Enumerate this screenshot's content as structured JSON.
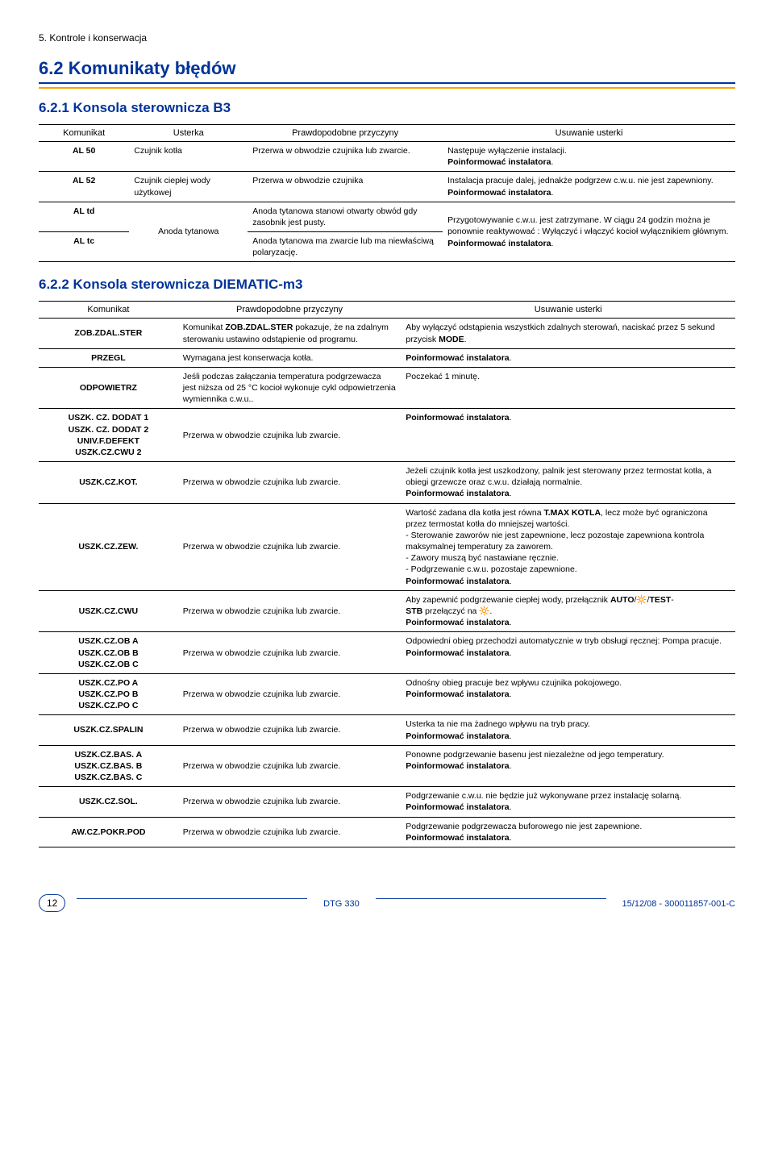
{
  "crumb": "5. Kontrole i konserwacja",
  "h2": "6.2  Komunikaty błędów",
  "section1": {
    "title": "6.2.1   Konsola sterownicza  B3",
    "headers": [
      "Komunikat",
      "Usterka",
      "Prawdopodobne przyczyny",
      "Usuwanie usterki"
    ],
    "rows": [
      {
        "c0": "AL 50",
        "c1": "Czujnik kotła",
        "c2": "Przerwa w obwodzie czujnika lub zwarcie.",
        "c3": "Następuje wyłączenie instalacji.\nPoinformować instalatora."
      },
      {
        "c0": "AL 52",
        "c1": "Czujnik ciepłej wody użytkowej",
        "c2": "Przerwa w obwodzie czujnika",
        "c3": "Instalacja pracuje dalej, jednakże podgrzew c.w.u. nie jest zapewniony.\nPoinformować instalatora."
      },
      {
        "c0": "AL td",
        "c2": "Anoda tytanowa stanowi otwarty obwód gdy zasobnik jest pusty."
      },
      {
        "c0": "AL tc",
        "c2": "Anoda tytanowa ma zwarcie lub ma niewłaściwą polaryzację."
      }
    ],
    "anoda_label": "Anoda tytanowa",
    "anoda_r3": "Przygotowywanie c.w.u. jest zatrzymane. W ciągu 24 godzin można je ponownie reaktywować : Wyłączyć i włączyć kocioł wyłącznikiem głównym.\nPoinformować instalatora."
  },
  "section2": {
    "title": "6.2.2   Konsola sterownicza  DIEMATIC-m3",
    "headers": [
      "Komunikat",
      "Prawdopodobne przyczyny",
      "Usuwanie usterki"
    ],
    "rows": [
      {
        "c0": "ZOB.ZDAL.STER",
        "c1": "Komunikat ZOB.ZDAL.STER pokazuje, że na zdalnym sterowaniu ustawino odstąpienie od programu.",
        "c2": "Aby wyłączyć odstąpienia wszystkich zdalnych sterowań, naciskać przez 5 sekund przycisk MODE."
      },
      {
        "c0": "PRZEGL",
        "c1": "Wymagana jest konserwacja kotła.",
        "c2": "Poinformować instalatora."
      },
      {
        "c0": "ODPOWIETRZ",
        "c1": "Jeśli podczas załączania temperatura podgrzewacza jest niższa od 25 °C kocioł wykonuje cykl odpowietrzenia wymiennika c.w.u..",
        "c2": "Poczekać 1 minutę."
      },
      {
        "c0": "USZK. CZ. DODAT 1\nUSZK. CZ. DODAT 2\nUNIV.F.DEFEKT\nUSZK.CZ.CWU 2",
        "c1": "Przerwa w obwodzie czujnika lub zwarcie.",
        "c2": "Poinformować instalatora."
      },
      {
        "c0": "USZK.CZ.KOT.",
        "c1": "Przerwa w obwodzie czujnika lub zwarcie.",
        "c2": "Jeżeli czujnik kotła jest uszkodzony, palnik jest sterowany przez termostat kotła, a obiegi grzewcze oraz c.w.u. działają normalnie.\nPoinformować instalatora."
      },
      {
        "c0": "USZK.CZ.ZEW.",
        "c1": "Przerwa w obwodzie czujnika lub zwarcie.",
        "c2": "Wartość zadana dla kotła jest równa T.MAX KOTLA, lecz może być ograniczona przez termostat kotła do mniejszej wartości.\n- Sterowanie zaworów nie jest zapewnione, lecz pozostaje zapewniona kontrola maksymalnej temperatury za zaworem.\n- Zawory muszą być nastawiane ręcznie.\n- Podgrzewanie c.w.u. pozostaje zapewnione.\nPoinformować instalatora."
      },
      {
        "c0": "USZK.CZ.CWU",
        "c1": "Przerwa w obwodzie czujnika lub zwarcie.",
        "c2": "Aby zapewnić podgrzewanie ciepłej wody, przełącznik AUTO/🔆/TEST-\nSTB przełączyć na 🔆.\nPoinformować instalatora."
      },
      {
        "c0": "USZK.CZ.OB A\nUSZK.CZ.OB B\nUSZK.CZ.OB C",
        "c1": "Przerwa w obwodzie czujnika lub zwarcie.",
        "c2": "Odpowiedni obieg przechodzi automatycznie w tryb obsługi ręcznej: Pompa pracuje.\nPoinformować instalatora."
      },
      {
        "c0": "USZK.CZ.PO A\nUSZK.CZ.PO B\nUSZK.CZ.PO C",
        "c1": "Przerwa w obwodzie czujnika lub zwarcie.",
        "c2": "Odnośny obieg pracuje bez wpływu czujnika pokojowego.\nPoinformować instalatora."
      },
      {
        "c0": "USZK.CZ.SPALIN",
        "c1": "Przerwa w obwodzie czujnika lub zwarcie.",
        "c2": "Usterka ta nie ma żadnego wpływu na tryb pracy.\nPoinformować instalatora."
      },
      {
        "c0": "USZK.CZ.BAS. A\nUSZK.CZ.BAS. B\nUSZK.CZ.BAS. C",
        "c1": "Przerwa w obwodzie czujnika lub zwarcie.",
        "c2": "Ponowne podgrzewanie basenu jest niezależne od jego temperatury.\nPoinformować instalatora."
      },
      {
        "c0": "USZK.CZ.SOL.",
        "c1": "Przerwa w obwodzie czujnika lub zwarcie.",
        "c2": "Podgrzewanie c.w.u. nie będzie już wykonywane przez instalację solarną.\nPoinformować instalatora."
      },
      {
        "c0": "AW.CZ.POKR.POD",
        "c1": "Przerwa w obwodzie czujnika lub zwarcie.",
        "c2": "Podgrzewanie podgrzewacza buforowego nie jest zapewnione.\nPoinformować instalatora."
      }
    ]
  },
  "footer": {
    "page": "12",
    "mid": "DTG 330",
    "right": "15/12/08 - 300011857-001-C"
  },
  "colors": {
    "blue": "#003399",
    "orange": "#f7a400"
  }
}
